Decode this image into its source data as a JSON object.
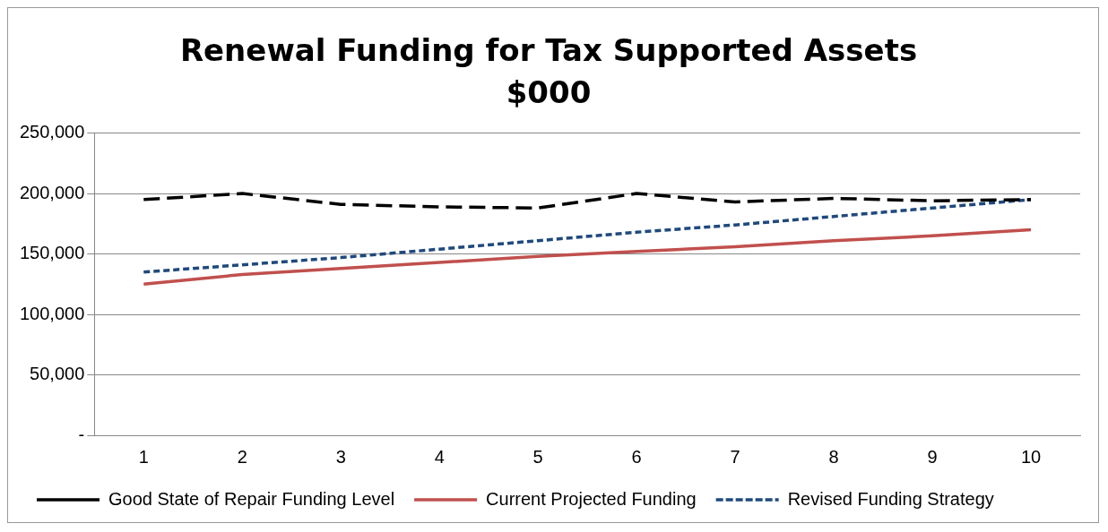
{
  "chart_data": {
    "type": "line",
    "title": "Renewal Funding for Tax Supported Assets",
    "subtitle": "$000",
    "categories": [
      "1",
      "2",
      "3",
      "4",
      "5",
      "6",
      "7",
      "8",
      "9",
      "10"
    ],
    "series": [
      {
        "name": "Good State of Repair Funding Level",
        "color": "#000000",
        "line_style": "dashed",
        "values": [
          195000,
          200000,
          191000,
          189000,
          188000,
          200000,
          193000,
          196000,
          194000,
          195000
        ]
      },
      {
        "name": "Current Projected Funding",
        "color": "#c0504d",
        "line_style": "solid",
        "values": [
          125000,
          133000,
          138000,
          143000,
          148000,
          152000,
          156000,
          161000,
          165000,
          170000
        ]
      },
      {
        "name": "Revised Funding Strategy",
        "color": "#1f497d",
        "line_style": "dotted",
        "values": [
          135000,
          141000,
          147000,
          154000,
          161000,
          168000,
          174000,
          181000,
          188000,
          195000
        ]
      }
    ],
    "ylim": [
      0,
      250000
    ],
    "yticks": [
      {
        "value": 0,
        "label": "-"
      },
      {
        "value": 50000,
        "label": "50,000"
      },
      {
        "value": 100000,
        "label": "100,000"
      },
      {
        "value": 150000,
        "label": "150,000"
      },
      {
        "value": 200000,
        "label": "200,000"
      },
      {
        "value": 250000,
        "label": "250,000"
      }
    ],
    "grid": "y",
    "legend": "bottom",
    "marker": "none"
  }
}
